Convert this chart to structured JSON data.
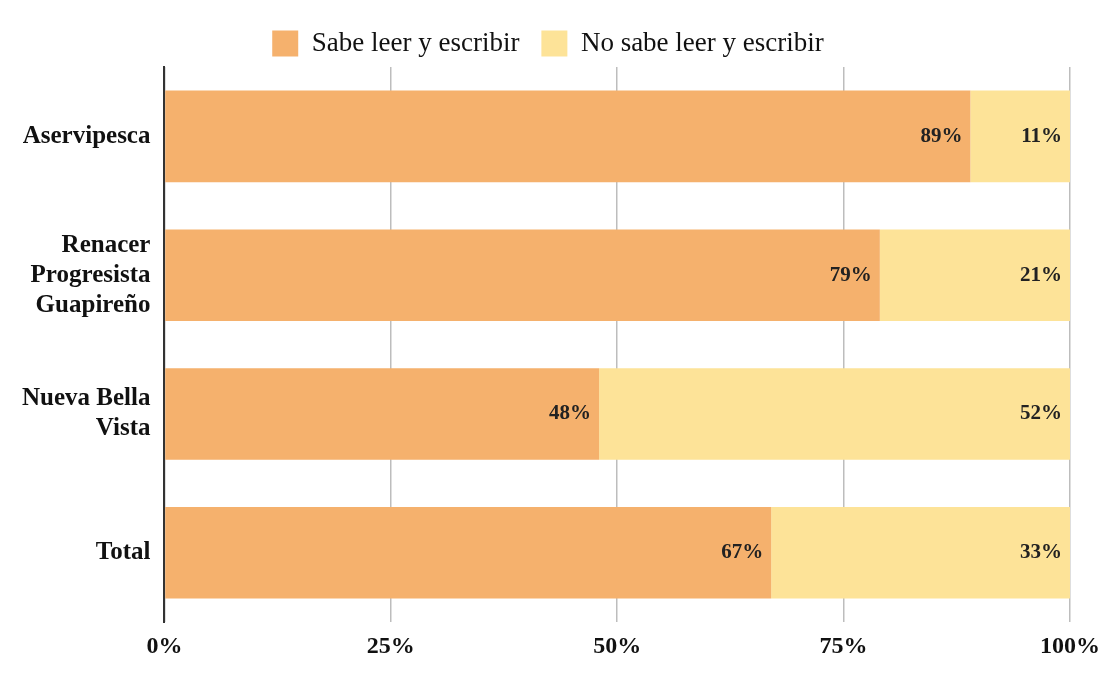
{
  "chart_data": {
    "type": "bar",
    "orientation": "horizontal",
    "stacked": true,
    "categories": [
      "Aservipesca",
      "Renacer Progresista Guapireño",
      "Nueva Bella Vista",
      "Total"
    ],
    "series": [
      {
        "name": "Sabe leer y escribir",
        "color": "#f5b16d",
        "values": [
          89,
          79,
          48,
          67
        ],
        "value_labels": [
          "89%",
          "79%",
          "48%",
          "67%"
        ]
      },
      {
        "name": "No sabe leer y escribir",
        "color": "#fde398",
        "values": [
          11,
          21,
          52,
          33
        ],
        "value_labels": [
          "11%",
          "21%",
          "52%",
          "33%"
        ]
      }
    ],
    "xlim": [
      0,
      100
    ],
    "xticks": [
      {
        "value": 0,
        "label": "0%"
      },
      {
        "value": 25,
        "label": "25%"
      },
      {
        "value": 50,
        "label": "50%"
      },
      {
        "value": 75,
        "label": "75%"
      },
      {
        "value": 100,
        "label": "100%"
      }
    ],
    "grid": "x",
    "legend": "top"
  }
}
